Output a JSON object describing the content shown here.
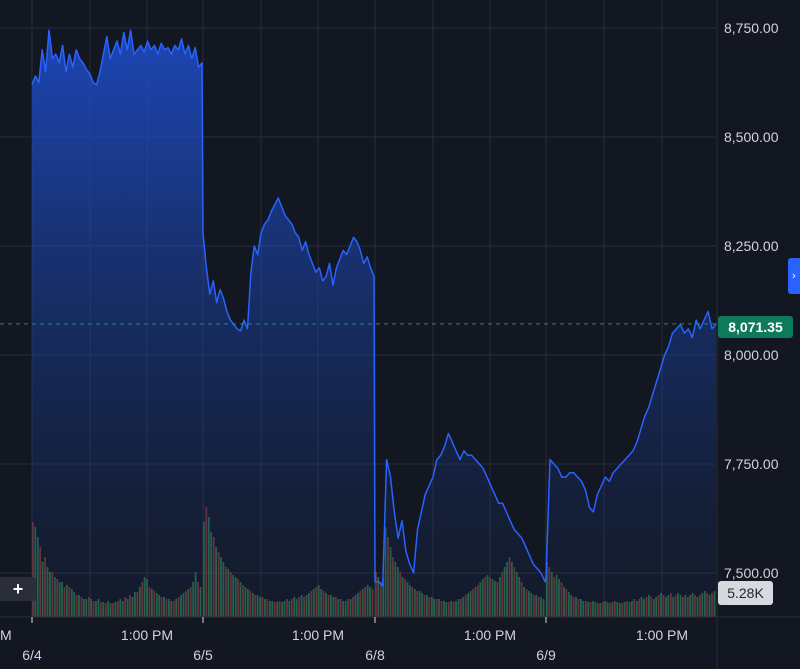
{
  "chart_data": {
    "type": "area",
    "price_axis": {
      "ticks": [
        7500,
        7750,
        8000,
        8250,
        8500,
        8750
      ],
      "tick_labels": [
        "7,500.00",
        "7,750.00",
        "8,000.00",
        "8,250.00",
        "8,500.00",
        "8,750.00"
      ],
      "ylim": [
        7430,
        8775
      ]
    },
    "time_axis": {
      "days": [
        {
          "label": "6/4",
          "time_label": "1:00 PM"
        },
        {
          "label": "6/5",
          "time_label": "1:00 PM"
        },
        {
          "label": "6/8",
          "time_label": "1:00 PM"
        },
        {
          "label": "6/9",
          "time_label": "1:00 PM"
        }
      ],
      "leading_label": "M"
    },
    "series": [
      {
        "values": [
          [
            8620,
            8640,
            8625,
            8700,
            8650,
            8745,
            8680,
            8690,
            8670,
            8710,
            8650,
            8690,
            8660,
            8700,
            8680,
            8670,
            8655,
            8645,
            8625,
            8620,
            8650,
            8690,
            8730,
            8680,
            8700,
            8720,
            8690,
            8740,
            8700,
            8745,
            8690,
            8700,
            8710,
            8695,
            8720,
            8700,
            8710,
            8690,
            8715,
            8700,
            8705,
            8690,
            8710,
            8700,
            8725,
            8690,
            8710,
            8680,
            8705,
            8660,
            8670
          ],
          [
            8280,
            8200,
            8140,
            8170,
            8120,
            8150,
            8130,
            8100,
            8080,
            8070,
            8060,
            8055,
            8080,
            8060,
            8190,
            8250,
            8230,
            8280,
            8300,
            8310,
            8330,
            8345,
            8360,
            8340,
            8320,
            8310,
            8300,
            8280,
            8270,
            8240,
            8260,
            8230,
            8210,
            8190,
            8200,
            8170,
            8180,
            8210,
            8160,
            8200,
            8220,
            8240,
            8230,
            8250,
            8270,
            8260,
            8240,
            8210,
            8225,
            8200,
            8180
          ],
          [
            7480,
            7480,
            7470,
            7760,
            7720,
            7640,
            7580,
            7620,
            7550,
            7520,
            7500,
            7600,
            7640,
            7680,
            7700,
            7720,
            7760,
            7770,
            7790,
            7820,
            7800,
            7780,
            7760,
            7780,
            7770,
            7770,
            7760,
            7750,
            7740,
            7720,
            7700,
            7680,
            7660,
            7660,
            7640,
            7620,
            7600,
            7590,
            7580,
            7560,
            7540,
            7520,
            7510,
            7500,
            7480
          ],
          [
            7490,
            7760,
            7750,
            7740,
            7720,
            7720,
            7730,
            7730,
            7720,
            7710,
            7690,
            7650,
            7640,
            7680,
            7700,
            7720,
            7710,
            7730,
            7740,
            7750,
            7760,
            7770,
            7780,
            7800,
            7830,
            7860,
            7880,
            7910,
            7940,
            7970,
            8000,
            8020,
            8050,
            8060,
            8070,
            8050,
            8060,
            8040,
            8080,
            8060,
            8080,
            8100,
            8060,
            8071
          ]
        ]
      }
    ],
    "last_price": 8071.35,
    "last_price_label": "8,071.35",
    "volume_label": "5.28K",
    "volume": [
      [
        95,
        90,
        80,
        70,
        55,
        60,
        50,
        45,
        45,
        40,
        38,
        35,
        35,
        30,
        32,
        30,
        28,
        25,
        22,
        22,
        20,
        18,
        18,
        20,
        18,
        16,
        16,
        18,
        15,
        15,
        14,
        16,
        14,
        14,
        15,
        16,
        18,
        16,
        20,
        18,
        22,
        20,
        25,
        25,
        30,
        35,
        40,
        38,
        30,
        28,
        26,
        24,
        22,
        20,
        20,
        18,
        18,
        16,
        16,
        18,
        20,
        22,
        24,
        26,
        28,
        30,
        35,
        45,
        35,
        30
      ],
      [
        95,
        110,
        100,
        85,
        80,
        70,
        65,
        60,
        55,
        50,
        48,
        45,
        42,
        40,
        38,
        35,
        32,
        30,
        28,
        26,
        24,
        22,
        22,
        20,
        20,
        18,
        18,
        16,
        16,
        15,
        15,
        16,
        15,
        16,
        18,
        16,
        18,
        20,
        18,
        20,
        22,
        20,
        22,
        24,
        26,
        28,
        30,
        32,
        28,
        26,
        24,
        22,
        22,
        20,
        20,
        18,
        18,
        16,
        16,
        18,
        18,
        20,
        22,
        24,
        26,
        28,
        30,
        32,
        30,
        28
      ],
      [
        45,
        40,
        35,
        38,
        90,
        80,
        70,
        60,
        55,
        50,
        45,
        40,
        38,
        35,
        32,
        30,
        28,
        26,
        26,
        24,
        22,
        22,
        20,
        20,
        18,
        18,
        18,
        16,
        16,
        15,
        15,
        16,
        15,
        16,
        18,
        18,
        20,
        22,
        24,
        26,
        28,
        30,
        32,
        35,
        38,
        40,
        42,
        40,
        38,
        36,
        35,
        40,
        45,
        50,
        55,
        60,
        55,
        50,
        45,
        40,
        35,
        30,
        28,
        26,
        24,
        22,
        22,
        20,
        20,
        18
      ],
      [
        55,
        50,
        45,
        40,
        42,
        38,
        35,
        30,
        28,
        25,
        22,
        20,
        20,
        18,
        18,
        16,
        16,
        15,
        15,
        16,
        15,
        14,
        14,
        15,
        16,
        15,
        14,
        15,
        16,
        15,
        14,
        14,
        15,
        16,
        15,
        16,
        18,
        16,
        18,
        20,
        18,
        20,
        22,
        20,
        18,
        20,
        22,
        24,
        22,
        20,
        22,
        24,
        20,
        22,
        24,
        22,
        20,
        22,
        20,
        22,
        24,
        22,
        20,
        22,
        24,
        26,
        24,
        22,
        24,
        26
      ]
    ],
    "colors": {
      "background": "#131722",
      "line": "#2962ff",
      "area_top": "#1e4fd0",
      "grid": "#2a2e39",
      "up_volume": "#2e7d4f",
      "down_volume": "#8e3a3a",
      "price_badge": "#0f7a5a",
      "price_line": "#1e8a6a"
    }
  },
  "controls": {
    "add_label": "+",
    "collapse_icon": "chevron-right-icon",
    "collapse_glyph": "›"
  }
}
